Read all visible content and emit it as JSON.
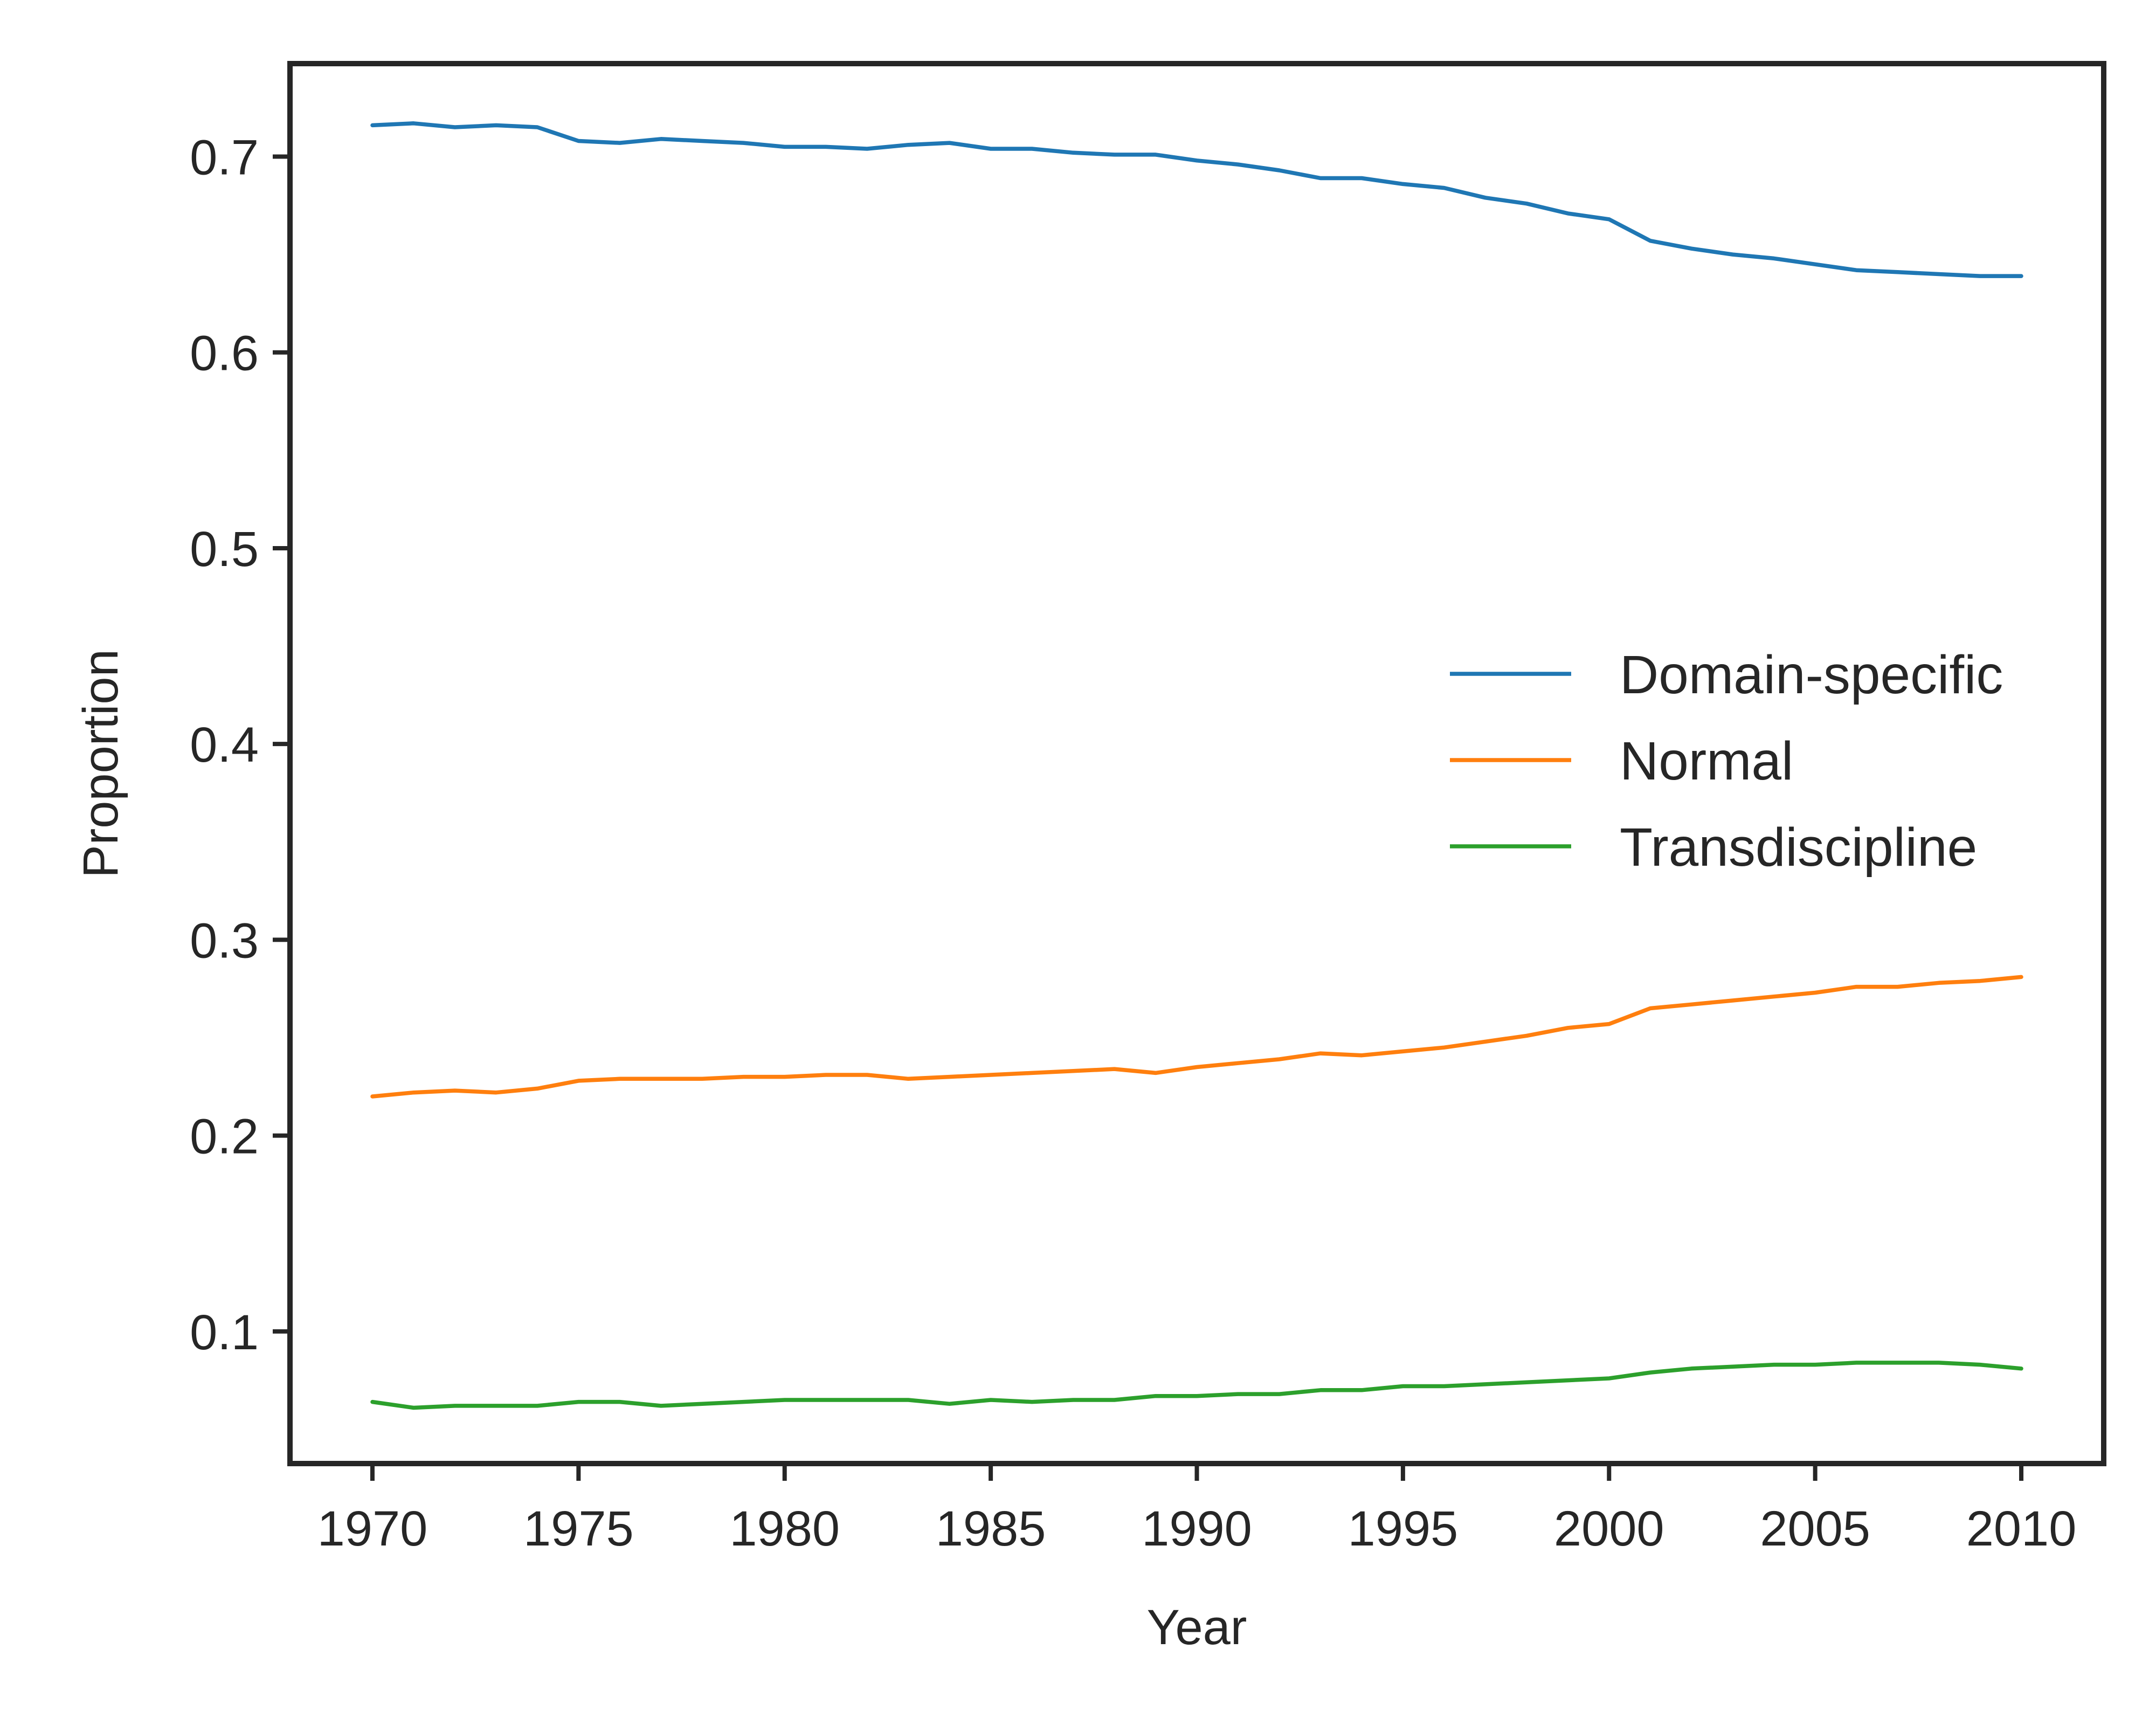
{
  "chart_data": {
    "type": "line",
    "title": "",
    "xlabel": "Year",
    "ylabel": "Proportion",
    "xlim": [
      1968,
      2012
    ],
    "ylim": [
      0.0325,
      0.7475
    ],
    "xticks": [
      1970,
      1975,
      1980,
      1985,
      1990,
      1995,
      2000,
      2005,
      2010
    ],
    "yticks": [
      0.1,
      0.2,
      0.3,
      0.4,
      0.5,
      0.6,
      0.7
    ],
    "ytick_labels": [
      "0.1",
      "0.2",
      "0.3",
      "0.4",
      "0.5",
      "0.6",
      "0.7"
    ],
    "grid": false,
    "legend": "center-right",
    "x": [
      1970,
      1971,
      1972,
      1973,
      1974,
      1975,
      1976,
      1977,
      1978,
      1979,
      1980,
      1981,
      1982,
      1983,
      1984,
      1985,
      1986,
      1987,
      1988,
      1989,
      1990,
      1991,
      1992,
      1993,
      1994,
      1995,
      1996,
      1997,
      1998,
      1999,
      2000,
      2001,
      2002,
      2003,
      2004,
      2005,
      2006,
      2007,
      2008,
      2009,
      2010
    ],
    "series": [
      {
        "name": "Domain-specific",
        "color": "#1f77b4",
        "values": [
          0.716,
          0.717,
          0.715,
          0.716,
          0.715,
          0.708,
          0.707,
          0.709,
          0.708,
          0.707,
          0.705,
          0.705,
          0.704,
          0.706,
          0.707,
          0.704,
          0.704,
          0.702,
          0.701,
          0.701,
          0.698,
          0.696,
          0.693,
          0.689,
          0.689,
          0.686,
          0.684,
          0.679,
          0.676,
          0.671,
          0.668,
          0.657,
          0.653,
          0.65,
          0.648,
          0.645,
          0.642,
          0.641,
          0.64,
          0.639,
          0.639
        ]
      },
      {
        "name": "Normal",
        "color": "#ff7f0e",
        "values": [
          0.22,
          0.222,
          0.223,
          0.222,
          0.224,
          0.228,
          0.229,
          0.229,
          0.229,
          0.23,
          0.23,
          0.231,
          0.231,
          0.229,
          0.23,
          0.231,
          0.232,
          0.233,
          0.234,
          0.232,
          0.235,
          0.237,
          0.239,
          0.242,
          0.241,
          0.243,
          0.245,
          0.248,
          0.251,
          0.255,
          0.257,
          0.265,
          0.267,
          0.269,
          0.271,
          0.273,
          0.276,
          0.276,
          0.278,
          0.279,
          0.281
        ]
      },
      {
        "name": "Transdiscipline",
        "color": "#2ca02c",
        "values": [
          0.064,
          0.061,
          0.062,
          0.062,
          0.062,
          0.064,
          0.064,
          0.062,
          0.063,
          0.064,
          0.065,
          0.065,
          0.065,
          0.065,
          0.063,
          0.065,
          0.064,
          0.065,
          0.065,
          0.067,
          0.067,
          0.068,
          0.068,
          0.07,
          0.07,
          0.072,
          0.072,
          0.073,
          0.074,
          0.075,
          0.076,
          0.079,
          0.081,
          0.082,
          0.083,
          0.083,
          0.084,
          0.084,
          0.084,
          0.083,
          0.081
        ]
      }
    ]
  }
}
